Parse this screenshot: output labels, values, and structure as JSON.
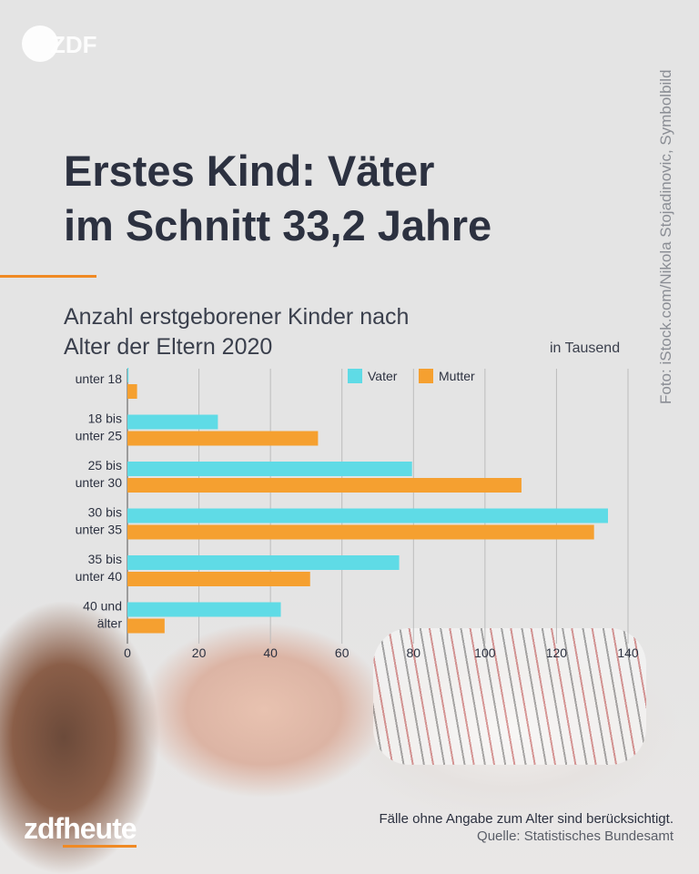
{
  "header": {
    "logo": "ZDF",
    "title_line1": "Erstes Kind: Väter",
    "title_line2": "im Schnitt 33,2 Jahre",
    "subtitle_line1": "Anzahl erstgeborener Kinder nach",
    "subtitle_line2": "Alter der Eltern 2020"
  },
  "photo_credit": "Foto: iStock.com/Nikola Stojadinovic, Symbolbild",
  "footer": {
    "note": "Fälle ohne Angabe zum Alter sind berücksichtigt.",
    "source": "Quelle: Statistisches Bundesamt",
    "brand_a": "zdf",
    "brand_b": "heute"
  },
  "colors": {
    "vater": "#5fdbe6",
    "mutter": "#f5a030",
    "accent": "#f08a24"
  },
  "chart_data": {
    "type": "bar",
    "orientation": "horizontal",
    "unit": "in Tausend",
    "categories": [
      [
        "unter 18"
      ],
      [
        "18 bis",
        "unter 25"
      ],
      [
        "25 bis",
        "unter 30"
      ],
      [
        "30 bis",
        "unter 35"
      ],
      [
        "35 bis",
        "unter 40"
      ],
      [
        "40 und",
        "älter"
      ]
    ],
    "series": [
      {
        "name": "Vater",
        "values": [
          0.3,
          25.3,
          79.6,
          134.4,
          76,
          42.9
        ]
      },
      {
        "name": "Mutter",
        "values": [
          2.7,
          53.3,
          110.2,
          130.5,
          51.1,
          10.4
        ]
      }
    ],
    "xlim": [
      0,
      140
    ],
    "xticks": [
      0,
      20,
      40,
      60,
      80,
      100,
      120,
      140
    ],
    "grid": true,
    "legend": "top-center"
  }
}
